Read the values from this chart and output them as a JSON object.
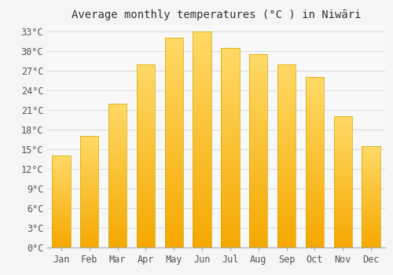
{
  "title": "Average monthly temperatures (°C ) in Niwāri",
  "months": [
    "Jan",
    "Feb",
    "Mar",
    "Apr",
    "May",
    "Jun",
    "Jul",
    "Aug",
    "Sep",
    "Oct",
    "Nov",
    "Dec"
  ],
  "temperatures": [
    14,
    17,
    22,
    28,
    32,
    33,
    30.5,
    29.5,
    28,
    26,
    20,
    15.5
  ],
  "bar_color_bottom": "#F5A800",
  "bar_color_top": "#FFD966",
  "bar_edge_color": "#CCAA00",
  "ylim": [
    0,
    34
  ],
  "yticks": [
    0,
    3,
    6,
    9,
    12,
    15,
    18,
    21,
    24,
    27,
    30,
    33
  ],
  "ytick_labels": [
    "0°C",
    "3°C",
    "6°C",
    "9°C",
    "12°C",
    "15°C",
    "18°C",
    "21°C",
    "24°C",
    "27°C",
    "30°C",
    "33°C"
  ],
  "grid_color": "#dddddd",
  "background_color": "#f5f5f5",
  "plot_bg_color": "#f8f8f8",
  "title_fontsize": 10,
  "tick_fontsize": 8.5,
  "bar_width": 0.65
}
